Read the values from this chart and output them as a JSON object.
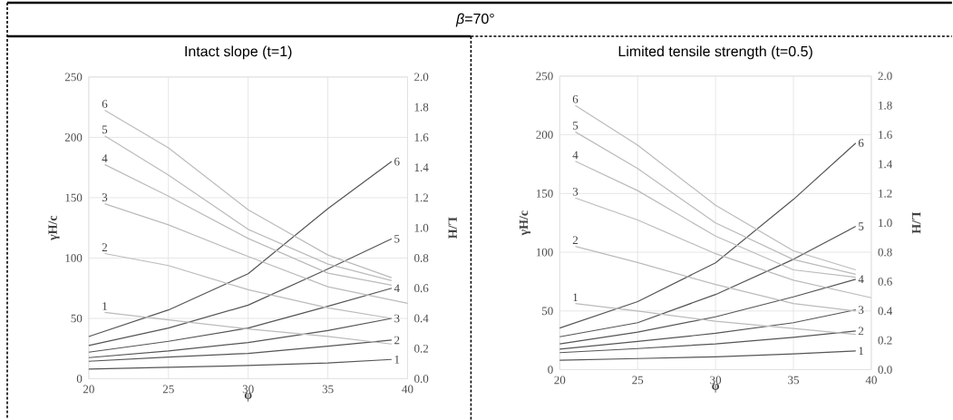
{
  "chart_data": [
    {
      "type": "line",
      "title": "Intact slope (t=1)",
      "annotations": [
        "*β*=70°"
      ],
      "xlabel": "φ",
      "ylabel": "γH/c",
      "y2label": "L/H",
      "xlim": [
        20,
        40
      ],
      "xticks": [
        20,
        25,
        30,
        35,
        40
      ],
      "ylim": [
        0,
        250
      ],
      "yticks": [
        0,
        50,
        100,
        150,
        200,
        250
      ],
      "y2lim": [
        0,
        2
      ],
      "y2ticks": [
        {
          "value": 0,
          "label": "0.0"
        },
        {
          "value": 0.2,
          "label": "0.2"
        },
        {
          "value": 0.4,
          "label": "0.4"
        },
        {
          "value": 0.6,
          "label": "0.6"
        },
        {
          "value": 0.8,
          "label": "0.8"
        },
        {
          "value": 1,
          "label": "1.0"
        },
        {
          "value": 1.2,
          "label": "1.2"
        },
        {
          "value": 1.4,
          "label": "1.4"
        },
        {
          "value": 1.6,
          "label": "1.6"
        },
        {
          "value": 1.8,
          "label": "1.8"
        },
        {
          "value": 2,
          "label": "2.0"
        }
      ],
      "grid": true,
      "series": [
        {
          "name": "6",
          "color": "#555555",
          "x": [
            20,
            25,
            30,
            35,
            39
          ],
          "values": [
            35,
            57,
            87,
            141,
            180
          ]
        },
        {
          "name": "5",
          "color": "#555555",
          "x": [
            20,
            25,
            30,
            35,
            39
          ],
          "values": [
            27.5,
            42,
            61,
            91,
            116
          ]
        },
        {
          "name": "4",
          "color": "#555555",
          "x": [
            20,
            25,
            30,
            35,
            39
          ],
          "values": [
            22,
            31,
            42,
            60,
            75
          ]
        },
        {
          "name": "3",
          "color": "#555555",
          "x": [
            20,
            25,
            30,
            35,
            39
          ],
          "values": [
            17.5,
            23,
            30,
            40,
            50
          ]
        },
        {
          "name": "2",
          "color": "#555555",
          "x": [
            20,
            25,
            30,
            35,
            39
          ],
          "values": [
            14.5,
            18,
            21,
            27,
            32
          ]
        },
        {
          "name": "1",
          "color": "#555555",
          "x": [
            20,
            25,
            30,
            35,
            39
          ],
          "values": [
            8,
            9.5,
            11,
            13,
            16
          ]
        },
        {
          "name": "6",
          "color": "#bbbbbb",
          "axis": "y2",
          "x": [
            21,
            25,
            30,
            35,
            39
          ],
          "values": [
            1.78,
            1.53,
            1.12,
            0.82,
            0.67
          ]
        },
        {
          "name": "5",
          "color": "#bbbbbb",
          "axis": "y2",
          "x": [
            21,
            25,
            30,
            35,
            39
          ],
          "values": [
            1.61,
            1.35,
            0.99,
            0.76,
            0.65
          ]
        },
        {
          "name": "4",
          "color": "#bbbbbb",
          "axis": "y2",
          "x": [
            21,
            25,
            30,
            35,
            39
          ],
          "values": [
            1.42,
            1.21,
            0.93,
            0.7,
            0.62
          ]
        },
        {
          "name": "3",
          "color": "#bbbbbb",
          "axis": "y2",
          "x": [
            21,
            25,
            30,
            35,
            40
          ],
          "values": [
            1.16,
            1.02,
            0.81,
            0.61,
            0.5
          ]
        },
        {
          "name": "2",
          "color": "#bbbbbb",
          "axis": "y2",
          "x": [
            21,
            25,
            30,
            35,
            39
          ],
          "values": [
            0.83,
            0.75,
            0.59,
            0.47,
            0.4
          ]
        },
        {
          "name": "1",
          "color": "#bbbbbb",
          "axis": "y2",
          "x": [
            21,
            25,
            30,
            35,
            39
          ],
          "values": [
            0.44,
            0.39,
            0.33,
            0.28,
            0.23
          ]
        }
      ]
    },
    {
      "type": "line",
      "title": "Limited tensile strength (t=0.5)",
      "xlabel": "φ",
      "ylabel": "γH/c",
      "y2label": "L/H",
      "xlim": [
        20,
        40
      ],
      "xticks": [
        20,
        25,
        30,
        35,
        40
      ],
      "ylim": [
        0,
        250
      ],
      "yticks": [
        0,
        50,
        100,
        150,
        200,
        250
      ],
      "y2lim": [
        0,
        2
      ],
      "y2ticks": [
        {
          "value": 0,
          "label": "0.0"
        },
        {
          "value": 0.2,
          "label": "0.2"
        },
        {
          "value": 0.4,
          "label": "0.4"
        },
        {
          "value": 0.6,
          "label": "0.6"
        },
        {
          "value": 0.8,
          "label": "0.8"
        },
        {
          "value": 1,
          "label": "1.0"
        },
        {
          "value": 1.2,
          "label": "1.2"
        },
        {
          "value": 1.4,
          "label": "1.4"
        },
        {
          "value": 1.6,
          "label": "1.6"
        },
        {
          "value": 1.8,
          "label": "1.8"
        },
        {
          "value": 2,
          "label": "2.0"
        }
      ],
      "grid": true,
      "series": [
        {
          "name": "6",
          "color": "#555555",
          "x": [
            20,
            25,
            30,
            35,
            39
          ],
          "values": [
            35.5,
            58,
            91,
            145,
            193
          ]
        },
        {
          "name": "5",
          "color": "#555555",
          "x": [
            20,
            25,
            30,
            35,
            39
          ],
          "values": [
            28,
            40,
            64,
            94,
            122
          ]
        },
        {
          "name": "4",
          "color": "#555555",
          "x": [
            20,
            25,
            30,
            35,
            39
          ],
          "values": [
            22,
            32,
            45,
            62,
            77
          ]
        },
        {
          "name": "3",
          "color": "#555555",
          "x": [
            20,
            25,
            30,
            35,
            39
          ],
          "values": [
            17.5,
            24,
            31,
            40,
            51
          ]
        },
        {
          "name": "2",
          "color": "#555555",
          "x": [
            20,
            25,
            30,
            35,
            39
          ],
          "values": [
            14.5,
            18,
            22,
            27.5,
            33
          ]
        },
        {
          "name": "1",
          "color": "#555555",
          "x": [
            20,
            25,
            30,
            35,
            39
          ],
          "values": [
            8,
            9.5,
            11,
            13.5,
            16
          ]
        },
        {
          "name": "6",
          "color": "#bbbbbb",
          "axis": "y2",
          "x": [
            21,
            25,
            30,
            35,
            39
          ],
          "values": [
            1.8,
            1.53,
            1.12,
            0.81,
            0.68
          ]
        },
        {
          "name": "5",
          "color": "#bbbbbb",
          "axis": "y2",
          "x": [
            21,
            25,
            30,
            35,
            39
          ],
          "values": [
            1.62,
            1.37,
            1.0,
            0.75,
            0.65
          ]
        },
        {
          "name": "4",
          "color": "#bbbbbb",
          "axis": "y2",
          "x": [
            21,
            25,
            30,
            35,
            39
          ],
          "values": [
            1.42,
            1.22,
            0.91,
            0.68,
            0.63
          ]
        },
        {
          "name": "3",
          "color": "#bbbbbb",
          "axis": "y2",
          "x": [
            21,
            25,
            30,
            35,
            40
          ],
          "values": [
            1.17,
            1.02,
            0.79,
            0.61,
            0.49
          ]
        },
        {
          "name": "2",
          "color": "#bbbbbb",
          "axis": "y2",
          "x": [
            21,
            25,
            30,
            35,
            39
          ],
          "values": [
            0.84,
            0.73,
            0.58,
            0.45,
            0.4
          ]
        },
        {
          "name": "1",
          "color": "#bbbbbb",
          "axis": "y2",
          "x": [
            21,
            25,
            30,
            35,
            39
          ],
          "values": [
            0.45,
            0.4,
            0.33,
            0.28,
            0.24
          ]
        }
      ]
    }
  ]
}
